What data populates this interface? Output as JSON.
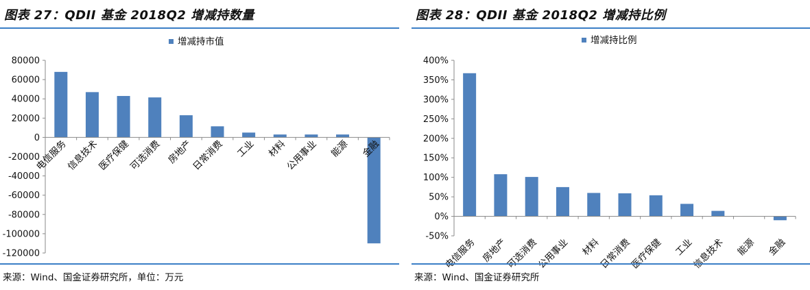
{
  "figures": [
    {
      "title": "图表 27：QDII 基金 2018Q2 增减持数量",
      "source": "来源：Wind、国金证券研究所，单位：万元"
    },
    {
      "title": "图表 28：QDII 基金 2018Q2 增减持比例",
      "source": "来源：Wind、国金证券研究所"
    }
  ],
  "colors": {
    "bar": "#4f81bd",
    "rule": "#3a7ec6",
    "axis": "#8a8a8a"
  },
  "chart_data": [
    {
      "type": "bar",
      "title": "",
      "legend_position": "top-center",
      "grid": false,
      "categories": [
        "电信服务",
        "信息技术",
        "医疗保健",
        "可选消费",
        "房地产",
        "日常消费",
        "工业",
        "材料",
        "公用事业",
        "能源",
        "金融"
      ],
      "series": [
        {
          "name": "增减持市值",
          "values": [
            68000,
            47000,
            43000,
            41500,
            23000,
            11500,
            5000,
            3000,
            3000,
            3000,
            -110000
          ]
        }
      ],
      "ylim": [
        -120000,
        80000
      ],
      "yticks": [
        80000,
        60000,
        40000,
        20000,
        0,
        -20000,
        -40000,
        -60000,
        -80000,
        -100000,
        -120000
      ],
      "ytick_labels": [
        "80000",
        "60000",
        "40000",
        "20000",
        "0",
        "-20000",
        "-40000",
        "-60000",
        "-80000",
        "-100000",
        "-120000"
      ]
    },
    {
      "type": "bar",
      "title": "",
      "legend_position": "top-center",
      "grid": false,
      "categories": [
        "电信服务",
        "房地产",
        "可选消费",
        "公用事业",
        "材料",
        "日常消费",
        "医疗保健",
        "工业",
        "信息技术",
        "能源",
        "金融"
      ],
      "series": [
        {
          "name": "增减持比例",
          "values": [
            3.67,
            1.08,
            1.01,
            0.75,
            0.6,
            0.59,
            0.54,
            0.32,
            0.14,
            0.01,
            -0.1
          ]
        }
      ],
      "ylim": [
        -0.5,
        4.0
      ],
      "yticks": [
        4.0,
        3.5,
        3.0,
        2.5,
        2.0,
        1.5,
        1.0,
        0.5,
        0.0,
        -0.5
      ],
      "ytick_labels": [
        "400%",
        "350%",
        "300%",
        "250%",
        "200%",
        "150%",
        "100%",
        "50%",
        "0%",
        "-50%"
      ]
    }
  ]
}
